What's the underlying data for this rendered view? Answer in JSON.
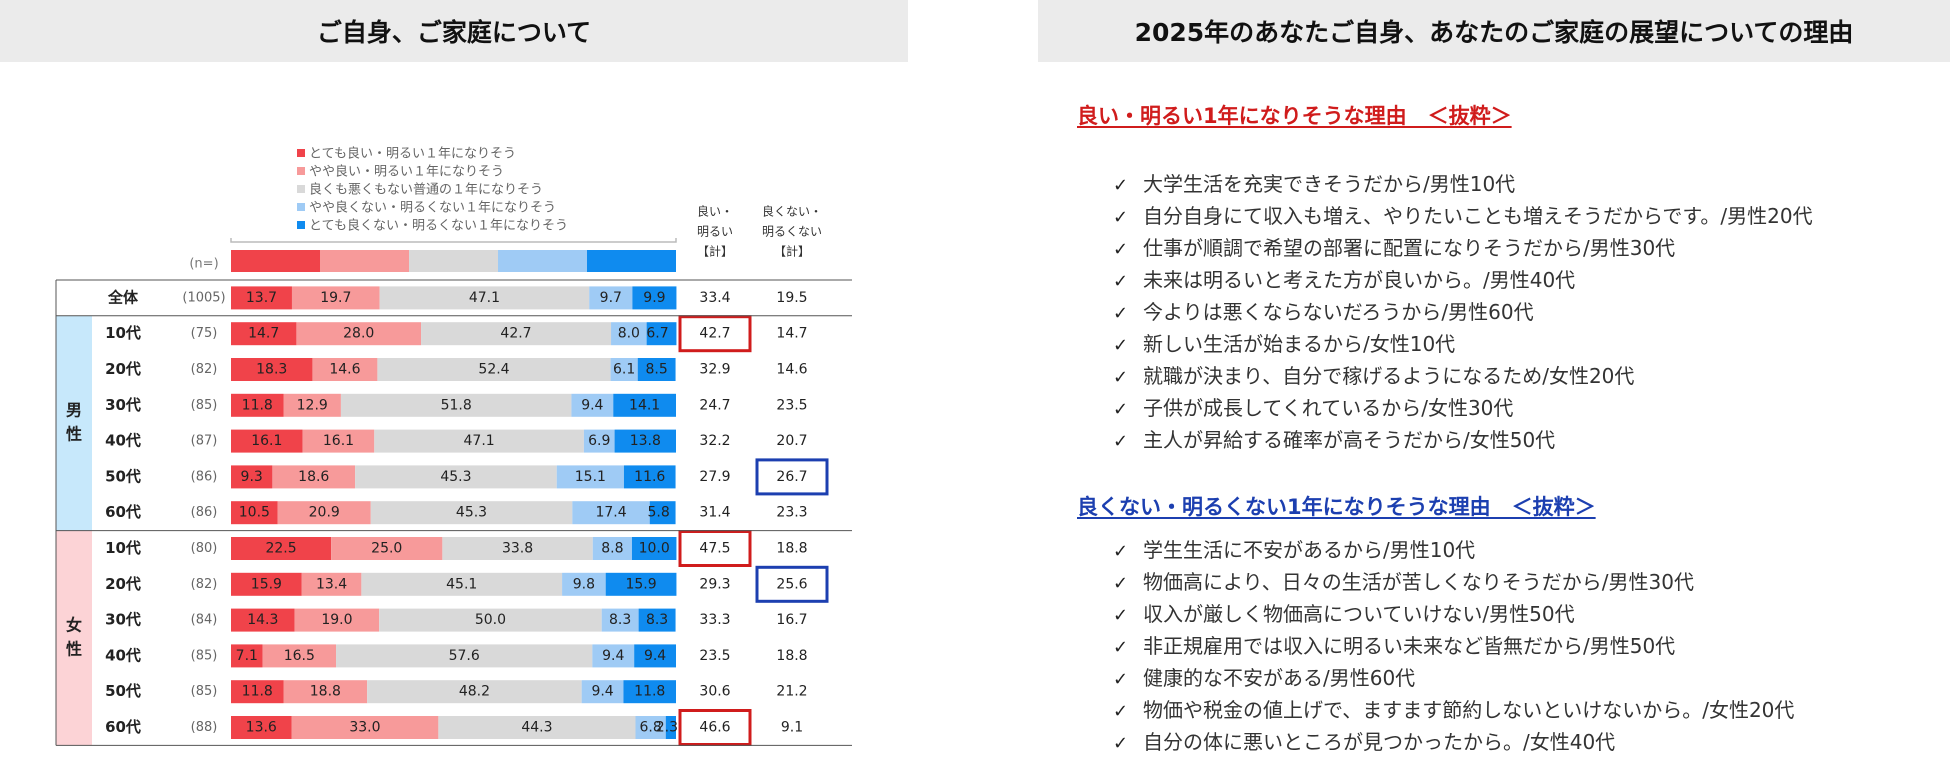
{
  "headers": {
    "left": "ご自身、ご家庭について",
    "right": "2025年のあなたご自身、あなたのご家庭の展望についての理由"
  },
  "colors": {
    "very_good": "#f0434a",
    "somewhat_good": "#f79a9a",
    "neutral": "#d9d9d9",
    "somewhat_bad": "#9fcbf5",
    "very_bad": "#0f8bef",
    "male_band": "#c7e8fb",
    "female_band": "#fcd3d6",
    "highlight_red": "#d01c1c",
    "highlight_blue": "#1c3fb0"
  },
  "chart_data": {
    "type": "bar",
    "orientation": "horizontal",
    "stacked": true,
    "legend": [
      "とても良い・明るい１年になりそう",
      "やや良い・明るい１年になりそう",
      "良くも悪くもない普通の１年になりそう",
      "やや良くない・明るくない１年になりそう",
      "とても良くない・明るくない１年になりそう"
    ],
    "legend_position": "top",
    "n_header": "(n=)",
    "col_good_header": [
      "良い・",
      "明るい",
      "【計】"
    ],
    "col_bad_header": [
      "良くない・",
      "明るくない",
      "【計】"
    ],
    "groups": [
      {
        "label": "",
        "rows": [
          0
        ]
      },
      {
        "label": "男性",
        "rows": [
          1,
          2,
          3,
          4,
          5,
          6
        ]
      },
      {
        "label": "女性",
        "rows": [
          7,
          8,
          9,
          10,
          11,
          12
        ]
      }
    ],
    "rows": [
      {
        "label": "全体",
        "n": "(1005)",
        "values": [
          13.7,
          19.7,
          47.1,
          9.7,
          9.9
        ],
        "good_total": 33.4,
        "bad_total": 19.5,
        "hl_good": false,
        "hl_bad": false
      },
      {
        "label": "10代",
        "n": "(75)",
        "values": [
          14.7,
          28.0,
          42.7,
          8.0,
          6.7
        ],
        "good_total": 42.7,
        "bad_total": 14.7,
        "hl_good": true,
        "hl_bad": false
      },
      {
        "label": "20代",
        "n": "(82)",
        "values": [
          18.3,
          14.6,
          52.4,
          6.1,
          8.5
        ],
        "good_total": 32.9,
        "bad_total": 14.6,
        "hl_good": false,
        "hl_bad": false
      },
      {
        "label": "30代",
        "n": "(85)",
        "values": [
          11.8,
          12.9,
          51.8,
          9.4,
          14.1
        ],
        "good_total": 24.7,
        "bad_total": 23.5,
        "hl_good": false,
        "hl_bad": false
      },
      {
        "label": "40代",
        "n": "(87)",
        "values": [
          16.1,
          16.1,
          47.1,
          6.9,
          13.8
        ],
        "good_total": 32.2,
        "bad_total": 20.7,
        "hl_good": false,
        "hl_bad": false
      },
      {
        "label": "50代",
        "n": "(86)",
        "values": [
          9.3,
          18.6,
          45.3,
          15.1,
          11.6
        ],
        "good_total": 27.9,
        "bad_total": 26.7,
        "hl_good": false,
        "hl_bad": true
      },
      {
        "label": "60代",
        "n": "(86)",
        "values": [
          10.5,
          20.9,
          45.3,
          17.4,
          5.8
        ],
        "good_total": 31.4,
        "bad_total": 23.3,
        "hl_good": false,
        "hl_bad": false
      },
      {
        "label": "10代",
        "n": "(80)",
        "values": [
          22.5,
          25.0,
          33.8,
          8.8,
          10.0
        ],
        "good_total": 47.5,
        "bad_total": 18.8,
        "hl_good": true,
        "hl_bad": false
      },
      {
        "label": "20代",
        "n": "(82)",
        "values": [
          15.9,
          13.4,
          45.1,
          9.8,
          15.9
        ],
        "good_total": 29.3,
        "bad_total": 25.6,
        "hl_good": false,
        "hl_bad": true
      },
      {
        "label": "30代",
        "n": "(84)",
        "values": [
          14.3,
          19.0,
          50.0,
          8.3,
          8.3
        ],
        "good_total": 33.3,
        "bad_total": 16.7,
        "hl_good": false,
        "hl_bad": false
      },
      {
        "label": "40代",
        "n": "(85)",
        "values": [
          7.1,
          16.5,
          57.6,
          9.4,
          9.4
        ],
        "good_total": 23.5,
        "bad_total": 18.8,
        "hl_good": false,
        "hl_bad": false
      },
      {
        "label": "50代",
        "n": "(85)",
        "values": [
          11.8,
          18.8,
          48.2,
          9.4,
          11.8
        ],
        "good_total": 30.6,
        "bad_total": 21.2,
        "hl_good": false,
        "hl_bad": false
      },
      {
        "label": "60代",
        "n": "(88)",
        "values": [
          13.6,
          33.0,
          44.3,
          6.8,
          2.3
        ],
        "good_total": 46.6,
        "bad_total": 9.1,
        "hl_good": true,
        "hl_bad": false
      }
    ]
  },
  "reasons": {
    "good": {
      "title": "良い・明るい1年になりそうな理由　＜抜粋＞",
      "items": [
        "大学生活を充実できそうだから/男性10代",
        "自分自身にて収入も増え、やりたいことも増えそうだからです。/男性20代",
        "仕事が順調で希望の部署に配置になりそうだから/男性30代",
        "未来は明るいと考えた方が良いから。/男性40代",
        "今よりは悪くならないだろうから/男性60代",
        "新しい生活が始まるから/女性10代",
        "就職が決まり、自分で稼げるようになるため/女性20代",
        "子供が成長してくれているから/女性30代",
        "主人が昇給する確率が高そうだから/女性50代"
      ]
    },
    "bad": {
      "title": "良くない・明るくない1年になりそうな理由　＜抜粋＞",
      "items": [
        "学生生活に不安があるから/男性10代",
        "物価高により、日々の生活が苦しくなりそうだから/男性30代",
        "収入が厳しく物価高についていけない/男性50代",
        "非正規雇用では収入に明るい未来など皆無だから/男性50代",
        "健康的な不安がある/男性60代",
        "物価や税金の値上げで、ますます節約しないといけないから。/女性20代",
        "自分の体に悪いところが見つかったから。/女性40代"
      ]
    }
  }
}
